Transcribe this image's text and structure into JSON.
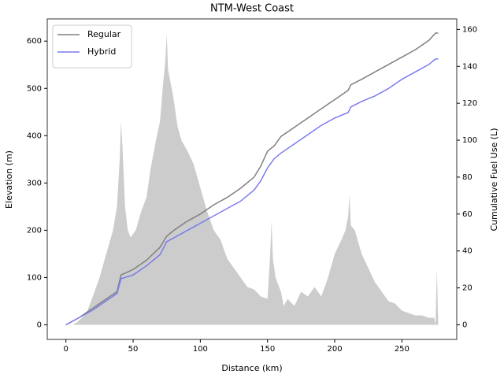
{
  "chart_data": {
    "type": "line",
    "title": "NTM-West Coast",
    "xlabel": "Distance (km)",
    "ylabel": "Elevation (m)",
    "y2label": "Cumulative Fuel Use (L)",
    "xlim": [
      -13.9,
      290.8
    ],
    "xticks": [
      0,
      50,
      100,
      150,
      200,
      250
    ],
    "ylim": [
      -30.8,
      647
    ],
    "yticks": [
      0,
      100,
      200,
      300,
      400,
      500,
      600
    ],
    "y2lim": [
      -7.9,
      165.7
    ],
    "y2ticks": [
      0,
      20,
      40,
      60,
      80,
      100,
      120,
      140,
      160
    ],
    "legend": "upper left",
    "elevation": {
      "color": "#cccccc",
      "x": [
        0,
        5,
        8,
        12,
        16,
        20,
        25,
        30,
        35,
        38,
        40,
        41,
        42,
        44,
        46,
        48,
        52,
        56,
        60,
        63,
        65,
        67,
        70,
        72,
        74,
        75,
        76,
        78,
        80,
        83,
        86,
        90,
        95,
        100,
        105,
        110,
        115,
        120,
        125,
        130,
        135,
        140,
        145,
        150,
        152,
        153,
        154,
        156,
        160,
        162,
        165,
        170,
        175,
        180,
        185,
        190,
        195,
        200,
        205,
        208,
        210,
        211,
        212,
        215,
        220,
        225,
        230,
        235,
        240,
        245,
        250,
        255,
        260,
        265,
        270,
        274,
        275,
        276,
        277
      ],
      "values": [
        0,
        0,
        5,
        15,
        30,
        60,
        100,
        150,
        200,
        250,
        350,
        430,
        380,
        250,
        200,
        185,
        200,
        240,
        270,
        330,
        360,
        390,
        430,
        500,
        560,
        615,
        540,
        510,
        480,
        420,
        390,
        370,
        340,
        290,
        240,
        200,
        180,
        140,
        120,
        100,
        80,
        75,
        60,
        55,
        150,
        220,
        140,
        100,
        70,
        40,
        55,
        40,
        70,
        60,
        80,
        60,
        100,
        150,
        180,
        200,
        230,
        275,
        210,
        200,
        150,
        120,
        90,
        70,
        50,
        45,
        30,
        25,
        20,
        20,
        15,
        15,
        0,
        120,
        0
      ]
    },
    "series": [
      {
        "name": "Regular",
        "color": "#808080",
        "axis": "y2",
        "x": [
          0,
          10,
          20,
          30,
          38,
          41,
          50,
          60,
          70,
          75,
          80,
          90,
          100,
          110,
          120,
          130,
          140,
          145,
          150,
          155,
          160,
          170,
          180,
          190,
          200,
          210,
          212,
          220,
          230,
          240,
          250,
          260,
          270,
          275,
          277
        ],
        "values": [
          0,
          4,
          9,
          14,
          18,
          27,
          30,
          35,
          42,
          48,
          51,
          56,
          60,
          65,
          69,
          74,
          80,
          86,
          94,
          97,
          102,
          107,
          112,
          117,
          122,
          127,
          130,
          133,
          137,
          141,
          145,
          149,
          154,
          158,
          158
        ]
      },
      {
        "name": "Hybrid",
        "color": "#7b7bf0",
        "axis": "y2",
        "x": [
          0,
          10,
          20,
          30,
          38,
          41,
          50,
          60,
          70,
          75,
          80,
          90,
          100,
          110,
          120,
          130,
          140,
          145,
          150,
          155,
          160,
          170,
          180,
          190,
          200,
          210,
          212,
          220,
          230,
          240,
          250,
          260,
          270,
          275,
          277
        ],
        "values": [
          0,
          4,
          8,
          13,
          17,
          25,
          27,
          32,
          38,
          45,
          47,
          51,
          55,
          59,
          63,
          67,
          73,
          78,
          85,
          90,
          93,
          98,
          103,
          108,
          112,
          115,
          118,
          121,
          124,
          128,
          133,
          137,
          141,
          144,
          144
        ]
      }
    ]
  }
}
